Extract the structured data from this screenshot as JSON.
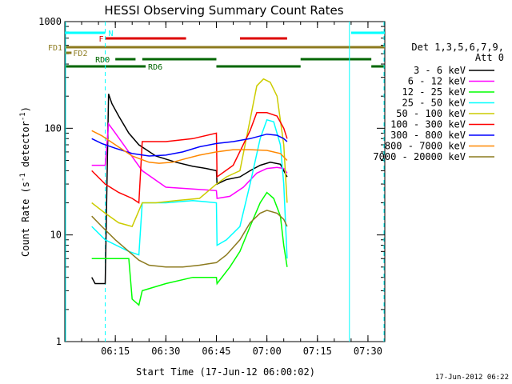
{
  "chart_data": {
    "type": "line",
    "title": "HESSI Observing Summary Count Rates",
    "xlabel": "Start Time (17-Jun-12 06:00:02)",
    "ylabel_main": "Count Rate (s",
    "ylabel_sup1": "-1",
    "ylabel_mid": " detector",
    "ylabel_sup2": "-1",
    "ylabel_end": ")",
    "yscale": "log",
    "ylim": [
      1,
      1000
    ],
    "xlim_minutes": [
      0,
      95
    ],
    "x_ticks": [
      {
        "minute": 15,
        "label": "06:15"
      },
      {
        "minute": 30,
        "label": "06:30"
      },
      {
        "minute": 45,
        "label": "06:45"
      },
      {
        "minute": 60,
        "label": "07:00"
      },
      {
        "minute": 75,
        "label": "07:15"
      },
      {
        "minute": 90,
        "label": "07:30"
      }
    ],
    "y_ticks": [
      {
        "value": 1,
        "label": "1"
      },
      {
        "value": 10,
        "label": "10"
      },
      {
        "value": 100,
        "label": "100"
      },
      {
        "value": 1000,
        "label": "1000"
      }
    ],
    "legend_title_1": "Det 1,3,5,6,7,9,",
    "legend_title_2": "Att 0",
    "series": [
      {
        "name": "3 - 6 keV",
        "color": "#000000",
        "x": [
          8,
          9,
          12,
          13,
          14,
          16,
          19,
          22,
          27,
          33,
          38,
          42,
          45,
          45.2,
          48,
          52,
          55,
          58,
          61,
          64,
          65,
          66
        ],
        "y": [
          4,
          3.5,
          3.5,
          210,
          170,
          130,
          90,
          70,
          55,
          48,
          44,
          42,
          40,
          30,
          33,
          35,
          40,
          45,
          48,
          46,
          40,
          35
        ]
      },
      {
        "name": "6 - 12 keV",
        "color": "#ff00ff",
        "x": [
          8,
          12,
          13,
          15,
          19,
          23,
          30,
          38,
          45,
          45.2,
          49,
          53,
          57,
          60,
          63,
          65,
          66
        ],
        "y": [
          45,
          45,
          110,
          90,
          60,
          40,
          28,
          27,
          26,
          22,
          23,
          28,
          38,
          42,
          43,
          42,
          38
        ]
      },
      {
        "name": "12 - 25 keV",
        "color": "#00ff00",
        "x": [
          8,
          12,
          19,
          20,
          22,
          23,
          30,
          38,
          45,
          45.2,
          49,
          52,
          55,
          58,
          60,
          62,
          64,
          65,
          66
        ],
        "y": [
          6,
          6,
          6,
          2.5,
          2.2,
          3,
          3.5,
          4,
          4,
          3.5,
          5,
          7,
          12,
          20,
          25,
          22,
          15,
          8,
          5
        ]
      },
      {
        "name": "25 - 50 keV",
        "color": "#00ffff",
        "x": [
          8,
          12,
          19,
          22,
          23,
          30,
          38,
          45,
          45.2,
          48,
          52,
          55,
          58,
          60,
          62,
          64,
          65,
          66
        ],
        "y": [
          12,
          9,
          7,
          6.5,
          20,
          20,
          21,
          20,
          8,
          9,
          12,
          30,
          80,
          120,
          115,
          70,
          30,
          6
        ]
      },
      {
        "name": "50 - 100 keV",
        "color": "#cccc00",
        "x": [
          8,
          12,
          16,
          20,
          23,
          27,
          33,
          40,
          45,
          48,
          52,
          55,
          57,
          59,
          61,
          63,
          65,
          66
        ],
        "y": [
          20,
          16,
          13,
          12,
          20,
          20,
          21,
          22,
          30,
          35,
          40,
          120,
          250,
          290,
          270,
          200,
          70,
          20
        ]
      },
      {
        "name": "100 - 300 keV",
        "color": "#ff0000",
        "x": [
          8,
          12,
          16,
          20,
          22,
          23,
          30,
          38,
          45,
          45.2,
          50,
          55,
          57,
          60,
          63,
          65,
          66
        ],
        "y": [
          40,
          30,
          25,
          22,
          20,
          75,
          75,
          80,
          90,
          35,
          45,
          95,
          140,
          140,
          130,
          100,
          80
        ]
      },
      {
        "name": "300 - 800 keV",
        "color": "#0000ff",
        "x": [
          8,
          11,
          15,
          20,
          25,
          30,
          35,
          40,
          45,
          50,
          55,
          60,
          63,
          65,
          66
        ],
        "y": [
          80,
          72,
          65,
          58,
          55,
          56,
          60,
          67,
          72,
          75,
          80,
          88,
          86,
          80,
          75
        ]
      },
      {
        "name": "800 - 7000 keV",
        "color": "#ff8800",
        "x": [
          8,
          11,
          15,
          20,
          25,
          28,
          32,
          36,
          40,
          45,
          50,
          55,
          60,
          64,
          66
        ],
        "y": [
          95,
          85,
          70,
          55,
          48,
          47,
          48,
          52,
          56,
          60,
          63,
          63,
          62,
          58,
          50
        ]
      },
      {
        "name": "7000 - 20000 keV",
        "color": "#8c7a1e",
        "x": [
          8,
          11,
          15,
          19,
          22,
          25,
          30,
          35,
          40,
          45,
          48,
          52,
          55,
          58,
          60,
          63,
          65,
          66
        ],
        "y": [
          15,
          12,
          9,
          7,
          5.8,
          5.2,
          5.0,
          5.0,
          5.2,
          5.5,
          6.5,
          9,
          13,
          16,
          17,
          16,
          14,
          12
        ]
      }
    ],
    "flag_bars": [
      {
        "label": "N",
        "color": "#00ffff",
        "segments": [
          [
            0,
            12
          ],
          [
            85,
            95
          ]
        ],
        "row": 0
      },
      {
        "label": "F",
        "color": "#dd0000",
        "segments": [
          [
            12,
            36
          ],
          [
            52,
            66
          ]
        ],
        "row": 1
      },
      {
        "label": "FD1",
        "color": "#8c7a1e",
        "segments": [
          [
            0,
            95
          ]
        ],
        "row": 2
      },
      {
        "label": "FD2",
        "color": "#8c7a1e",
        "segments": [
          [
            0,
            2
          ]
        ],
        "row": 3
      },
      {
        "label": "RD0",
        "color": "#006600",
        "segments": [
          [
            15,
            21
          ],
          [
            23,
            45
          ],
          [
            70,
            91
          ]
        ],
        "row": 4
      },
      {
        "label": "RD6",
        "color": "#006600",
        "segments": [
          [
            0,
            24
          ],
          [
            45,
            70
          ],
          [
            91,
            96
          ]
        ],
        "row": 5
      }
    ],
    "vlines_solid_minutes": [
      84.5
    ],
    "vlines_dashed_minutes": [
      12,
      96
    ],
    "footer_date": "17-Jun-2012 06:22"
  }
}
